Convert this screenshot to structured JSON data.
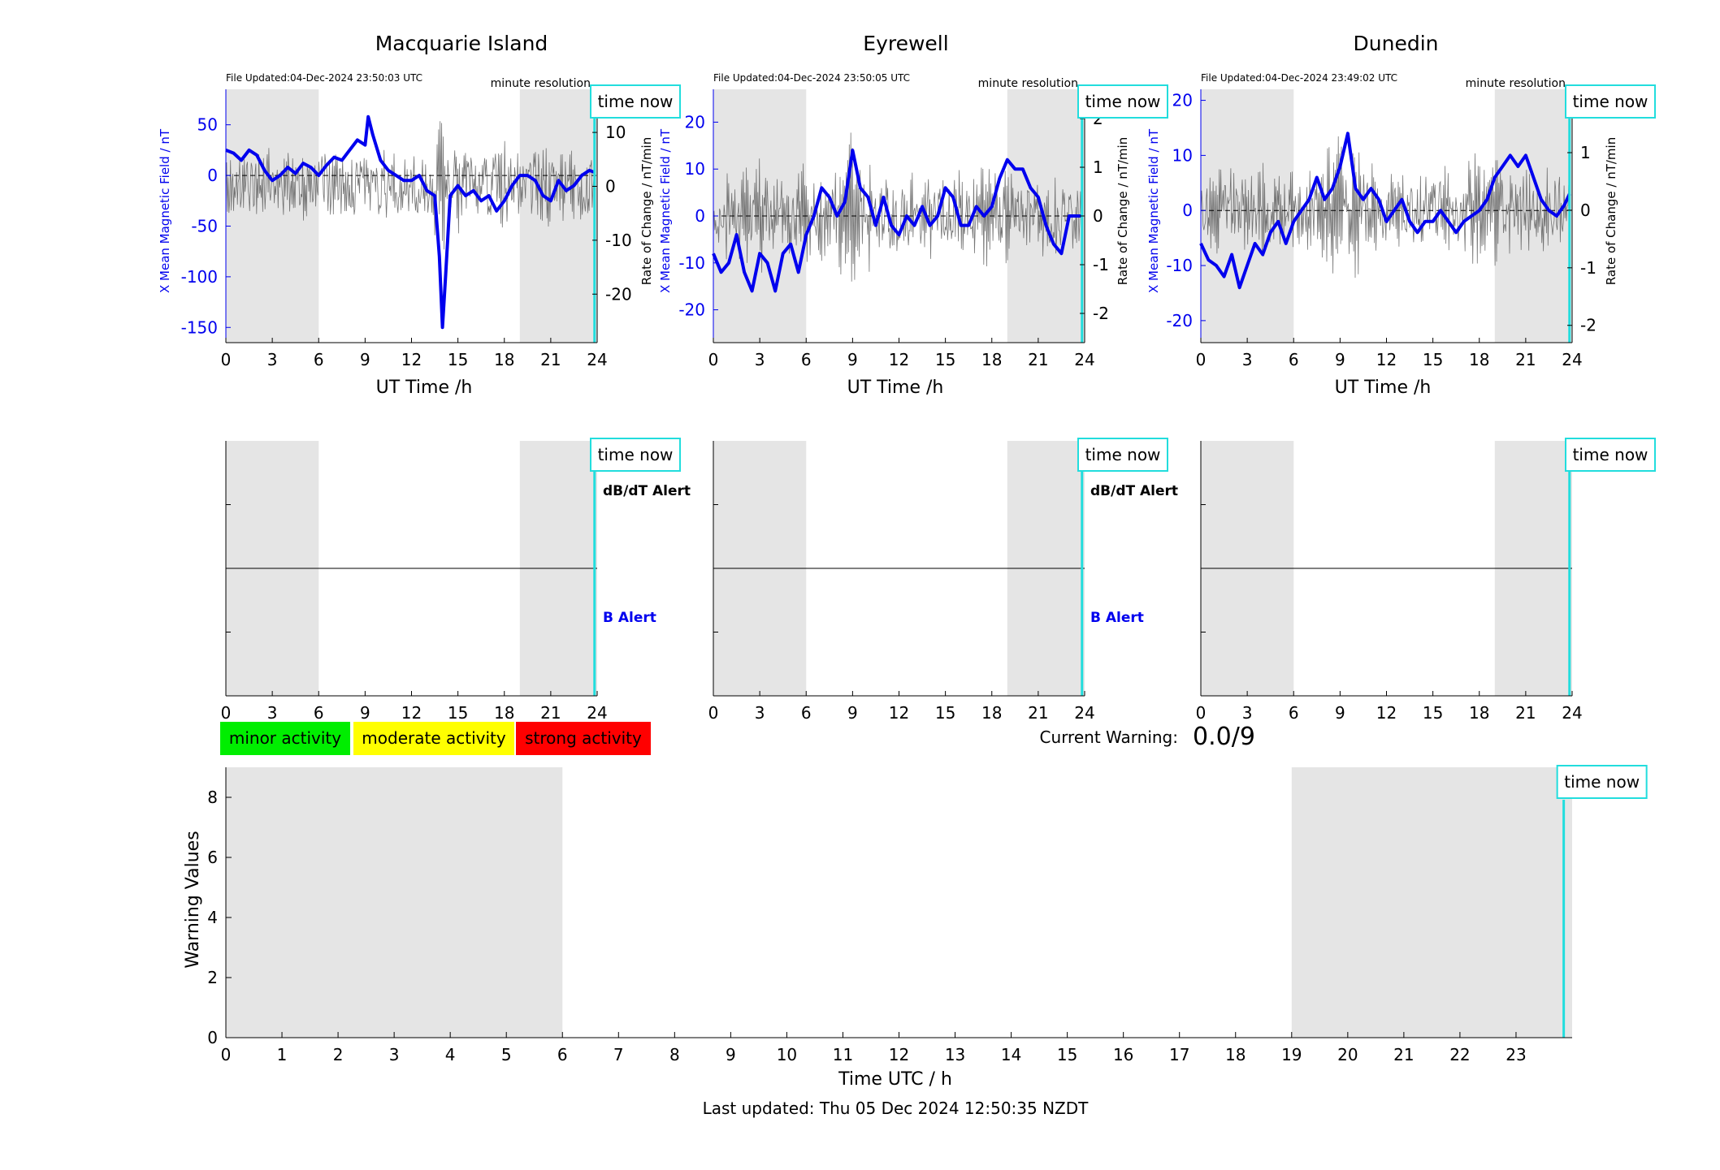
{
  "colors": {
    "field": "#0000ee",
    "rate": "#555555",
    "night": "#e5e5e5",
    "time_now": "#22dddd",
    "minor": "#00ee00",
    "moderate": "#ffff00",
    "strong": "#ff0000",
    "b_alert": "#0000ee"
  },
  "common": {
    "resolution": "minute resolution",
    "time_now": "time now",
    "ut_xlabel": "UT Time /h",
    "field_ylabel": "X Mean Magnetic Field / nT",
    "rate_ylabel": "Rate of Change / nT/min",
    "dbdt_alert": "dB/dT Alert",
    "b_alert": "B Alert"
  },
  "stations": [
    {
      "name": "Macquarie Island",
      "updated": "File Updated:04-Dec-2024 23:50:03 UTC"
    },
    {
      "name": "Eyrewell",
      "updated": "File Updated:04-Dec-2024 23:50:05 UTC"
    },
    {
      "name": "Dunedin",
      "updated": "File Updated:04-Dec-2024 23:49:02 UTC"
    }
  ],
  "legend": {
    "minor": "minor activity",
    "moderate": "moderate activity",
    "strong": "strong activity"
  },
  "current_warning": {
    "label": "Current Warning:",
    "value": "0.0/9"
  },
  "footer": {
    "last_updated": "Last updated: Thu 05 Dec 2024 12:50:35 NZDT"
  },
  "chart_data": [
    {
      "type": "line",
      "title": "Macquarie Island",
      "xlabel": "UT Time /h",
      "ylabel": "X Mean Magnetic Field / nT",
      "y2label": "Rate of Change / nT/min",
      "xlim": [
        0,
        24
      ],
      "ylim": [
        -165,
        85
      ],
      "y2lim": [
        -29,
        18
      ],
      "xticks": [
        0,
        3,
        6,
        9,
        12,
        15,
        18,
        21,
        24
      ],
      "yticks": [
        -150,
        -100,
        -50,
        0,
        50
      ],
      "y2ticks": [
        -20,
        -10,
        0,
        10
      ],
      "night_bands": [
        [
          0,
          6
        ],
        [
          19,
          24
        ]
      ],
      "time_now": 23.83,
      "series": [
        {
          "axis": "left",
          "x": [
            0,
            0.5,
            1,
            1.5,
            2,
            2.5,
            3,
            3.5,
            4,
            4.5,
            5,
            5.5,
            6,
            6.5,
            7,
            7.5,
            8,
            8.5,
            9,
            9.2,
            9.5,
            10,
            10.5,
            11,
            11.5,
            12,
            12.5,
            13,
            13.5,
            13.8,
            14,
            14.2,
            14.5,
            15,
            15.5,
            16,
            16.5,
            17,
            17.5,
            18,
            18.5,
            19,
            19.5,
            20,
            20.5,
            21,
            21.5,
            22,
            22.5,
            23,
            23.5,
            23.83
          ],
          "y": [
            25,
            22,
            15,
            25,
            20,
            5,
            -5,
            0,
            8,
            2,
            12,
            8,
            0,
            10,
            18,
            15,
            25,
            35,
            30,
            58,
            40,
            15,
            5,
            0,
            -5,
            -5,
            0,
            -15,
            -20,
            -80,
            -150,
            -100,
            -20,
            -10,
            -20,
            -15,
            -25,
            -20,
            -35,
            -25,
            -10,
            0,
            0,
            -5,
            -20,
            -25,
            -5,
            -15,
            -10,
            0,
            5,
            3
          ]
        },
        {
          "axis": "right",
          "name": "",
          "x": [
            0,
            1,
            2,
            3,
            4,
            5,
            6,
            7,
            8,
            9,
            10,
            11,
            12,
            13,
            14,
            15,
            16,
            17,
            18,
            19,
            20,
            21,
            22,
            23,
            23.83
          ],
          "y": [
            0.5,
            -1,
            2,
            -3,
            1,
            -2,
            0.5,
            1,
            -1,
            0.5,
            -2,
            1,
            0.5,
            -1,
            8,
            -4,
            2,
            -1,
            3,
            -2,
            1,
            2,
            -3,
            1,
            0
          ]
        }
      ]
    },
    {
      "type": "line",
      "title": "Eyrewell",
      "xlabel": "UT Time /h",
      "ylabel": "X Mean Magnetic Field / nT",
      "y2label": "Rate of Change / nT/min",
      "xlim": [
        0,
        24
      ],
      "ylim": [
        -27,
        27
      ],
      "y2lim": [
        -2.6,
        2.6
      ],
      "xticks": [
        0,
        3,
        6,
        9,
        12,
        15,
        18,
        21,
        24
      ],
      "yticks": [
        -20,
        -10,
        0,
        10,
        20
      ],
      "y2ticks": [
        -2,
        -1,
        0,
        1,
        2
      ],
      "night_bands": [
        [
          0,
          6
        ],
        [
          19,
          24
        ]
      ],
      "time_now": 23.83,
      "series": [
        {
          "axis": "left",
          "x": [
            0,
            0.5,
            1,
            1.5,
            2,
            2.5,
            3,
            3.5,
            4,
            4.5,
            5,
            5.5,
            6,
            6.5,
            7,
            7.5,
            8,
            8.5,
            9,
            9.5,
            10,
            10.5,
            11,
            11.5,
            12,
            12.5,
            13,
            13.5,
            14,
            14.5,
            15,
            15.5,
            16,
            16.5,
            17,
            17.5,
            18,
            18.5,
            19,
            19.5,
            20,
            20.5,
            21,
            21.5,
            22,
            22.5,
            23,
            23.5,
            23.83
          ],
          "y": [
            -8,
            -12,
            -10,
            -4,
            -12,
            -16,
            -8,
            -10,
            -16,
            -8,
            -6,
            -12,
            -4,
            0,
            6,
            4,
            0,
            3,
            14,
            6,
            4,
            -2,
            4,
            -2,
            -4,
            0,
            -2,
            2,
            -2,
            0,
            6,
            4,
            -2,
            -2,
            2,
            0,
            2,
            8,
            12,
            10,
            10,
            6,
            4,
            -2,
            -6,
            -8,
            0,
            0,
            0
          ]
        },
        {
          "axis": "right",
          "name": "",
          "x": [
            0,
            1,
            2,
            3,
            4,
            5,
            6,
            7,
            8,
            9,
            10,
            11,
            12,
            13,
            14,
            15,
            16,
            17,
            18,
            19,
            20,
            21,
            22,
            23,
            23.83
          ],
          "y": [
            0.3,
            -0.4,
            0.6,
            -0.8,
            0.5,
            -0.3,
            0.8,
            -0.5,
            0.4,
            1.2,
            -0.6,
            0.3,
            -0.2,
            0.4,
            -0.3,
            0.2,
            -0.4,
            0.3,
            0.6,
            -0.5,
            0.3,
            -0.4,
            0.2,
            0.1,
            0
          ]
        }
      ]
    },
    {
      "type": "line",
      "title": "Dunedin",
      "xlabel": "UT Time /h",
      "ylabel": "X Mean Magnetic Field / nT",
      "y2label": "Rate of Change / nT/min",
      "xlim": [
        0,
        24
      ],
      "ylim": [
        -24,
        22
      ],
      "y2lim": [
        -2.3,
        2.1
      ],
      "xticks": [
        0,
        3,
        6,
        9,
        12,
        15,
        18,
        21,
        24
      ],
      "yticks": [
        -20,
        -10,
        0,
        10,
        20
      ],
      "y2ticks": [
        -2,
        -1,
        0,
        1,
        2
      ],
      "night_bands": [
        [
          0,
          6
        ],
        [
          19,
          24
        ]
      ],
      "time_now": 23.83,
      "series": [
        {
          "axis": "left",
          "x": [
            0,
            0.5,
            1,
            1.5,
            2,
            2.5,
            3,
            3.5,
            4,
            4.5,
            5,
            5.5,
            6,
            6.5,
            7,
            7.5,
            8,
            8.5,
            9,
            9.5,
            10,
            10.5,
            11,
            11.5,
            12,
            12.5,
            13,
            13.5,
            14,
            14.5,
            15,
            15.5,
            16,
            16.5,
            17,
            17.5,
            18,
            18.5,
            19,
            19.5,
            20,
            20.5,
            21,
            21.5,
            22,
            22.5,
            23,
            23.5,
            23.83
          ],
          "y": [
            -6,
            -9,
            -10,
            -12,
            -8,
            -14,
            -10,
            -6,
            -8,
            -4,
            -2,
            -6,
            -2,
            0,
            2,
            6,
            2,
            4,
            8,
            14,
            4,
            2,
            4,
            2,
            -2,
            0,
            2,
            -2,
            -4,
            -2,
            -2,
            0,
            -2,
            -4,
            -2,
            -1,
            0,
            2,
            6,
            8,
            10,
            8,
            10,
            6,
            2,
            0,
            -1,
            1,
            3
          ]
        },
        {
          "axis": "right",
          "name": "",
          "x": [
            0,
            1,
            2,
            3,
            4,
            5,
            6,
            7,
            8,
            9,
            10,
            11,
            12,
            13,
            14,
            15,
            16,
            17,
            18,
            19,
            20,
            21,
            22,
            23,
            23.83
          ],
          "y": [
            0.3,
            -0.5,
            0.4,
            -0.6,
            0.5,
            -0.3,
            0.4,
            -0.4,
            0.5,
            0.8,
            -1.0,
            0.4,
            -0.3,
            0.3,
            -0.2,
            0.3,
            -0.4,
            0.2,
            0.6,
            -0.5,
            0.4,
            -0.5,
            0.3,
            0.1,
            0
          ]
        }
      ]
    },
    {
      "type": "line",
      "title": "",
      "xlabel": "Time UTC / h",
      "ylabel": "Warning Values",
      "xlim": [
        0,
        24
      ],
      "ylim": [
        0,
        9
      ],
      "xticks": [
        0,
        1,
        2,
        3,
        4,
        5,
        6,
        7,
        8,
        9,
        10,
        11,
        12,
        13,
        14,
        15,
        16,
        17,
        18,
        19,
        20,
        21,
        22,
        23
      ],
      "yticks": [
        0,
        2,
        4,
        6,
        8
      ],
      "night_bands": [
        [
          0,
          6
        ],
        [
          19,
          24
        ]
      ],
      "time_now": 23.85,
      "series": []
    }
  ]
}
